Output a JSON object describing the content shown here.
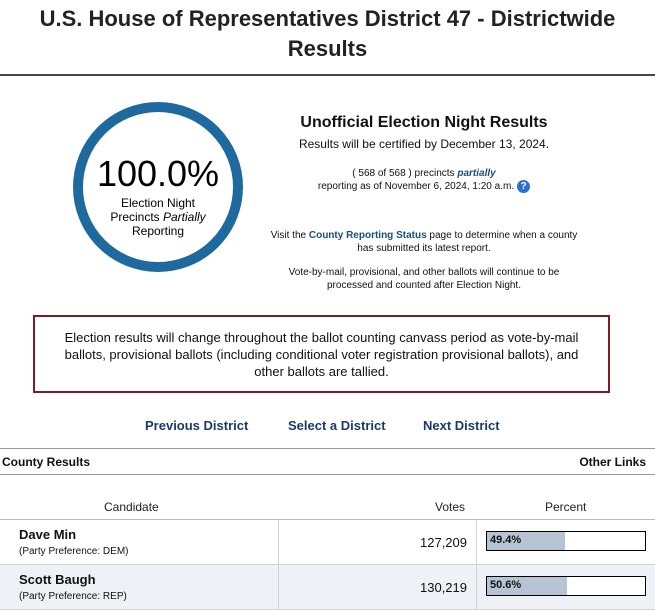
{
  "header": {
    "title": "U.S. House of Representatives District 47 - Districtwide Results"
  },
  "reporting": {
    "percent": "100.0%",
    "caption_line1": "Election Night",
    "caption_line2_pre": "Precincts ",
    "caption_line2_em": "Partially",
    "caption_line3": "Reporting"
  },
  "info": {
    "heading": "Unofficial Election Night Results",
    "certified": "Results will be certified by December 13, 2024.",
    "precincts_pre": "( 568 of 568 ) precincts ",
    "precincts_em": "partially",
    "precincts_post": "reporting as of November 6, 2024, 1:20 a.m.",
    "visit_pre": "Visit the ",
    "visit_link": "County Reporting Status",
    "visit_post": " page to determine when a county has submitted its latest report.",
    "vbm": "Vote-by-mail, provisional, and other ballots will continue to be processed and counted after Election Night."
  },
  "warning": {
    "text": "Election results will change throughout the ballot counting canvass period as vote-by-mail ballots, provisional ballots (including conditional voter registration provisional ballots), and other ballots are tallied."
  },
  "nav": {
    "previous": "Previous District",
    "select": "Select a District",
    "next": "Next District"
  },
  "bar": {
    "county_results": "County Results",
    "other_links": "Other Links"
  },
  "table": {
    "headers": {
      "candidate": "Candidate",
      "votes": "Votes",
      "percent": "Percent"
    },
    "rows": [
      {
        "name": "Dave Min",
        "party": "(Party Preference: DEM)",
        "votes": "127,209",
        "percent_label": "49.4%",
        "percent_value": 49.4
      },
      {
        "name": "Scott Baugh",
        "party": "(Party Preference: REP)",
        "votes": "130,219",
        "percent_label": "50.6%",
        "percent_value": 50.6
      }
    ]
  },
  "colors": {
    "ring": "#1e6a9e",
    "warning_border": "#7a1e24",
    "bar_fill": "#b7c4d4",
    "link": "#1a4e7a"
  }
}
